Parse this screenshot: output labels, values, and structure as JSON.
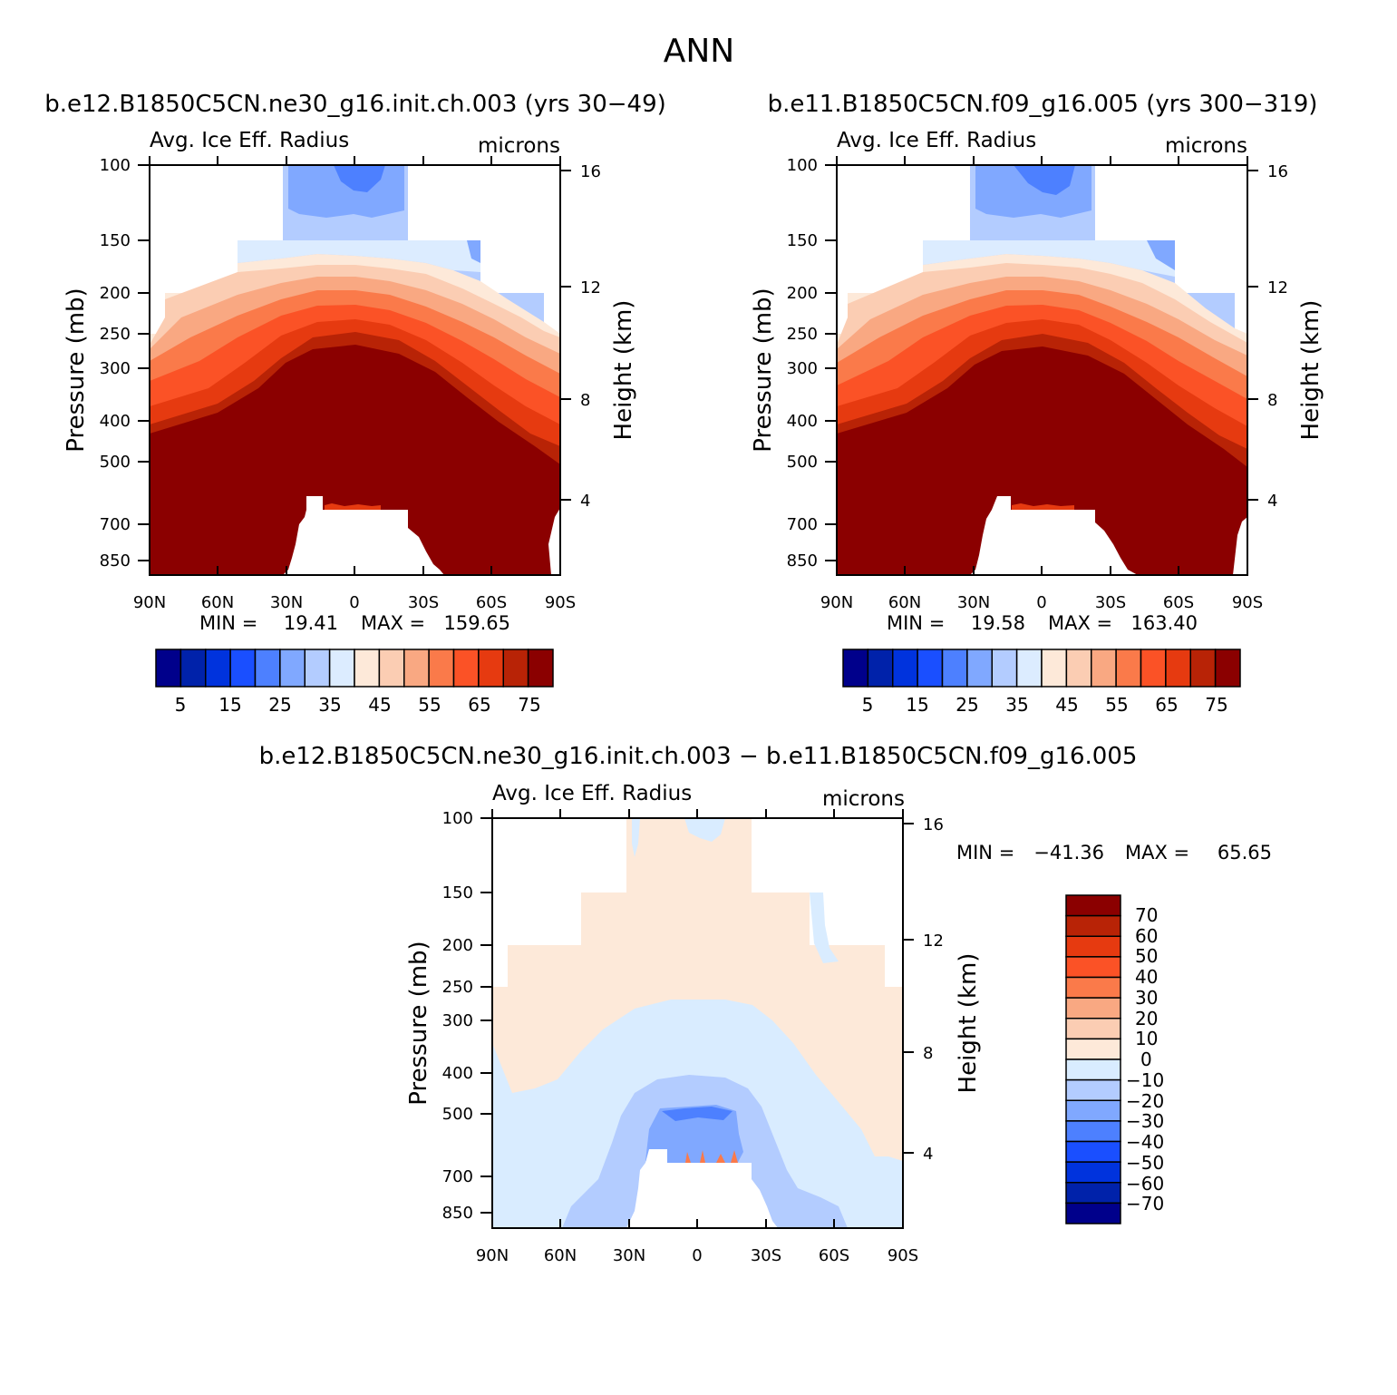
{
  "page": {
    "title": "ANN",
    "panel_left_title": "b.e12.B1850C5CN.ne30_g16.init.ch.003 (yrs 30-49)",
    "panel_right_title": "b.e11.B1850C5CN.f09_g16.005 (yrs 300-319)",
    "panel_diff_title": "b.e12.B1850C5CN.ne30_g16.init.ch.003 - b.e11.B1850C5CN.f09_g16.005"
  },
  "colors": {
    "abs_scale": [
      "#00008b",
      "#0022aa",
      "#0033dd",
      "#1a4fff",
      "#4d80ff",
      "#80a8ff",
      "#b3ccff",
      "#dcecff",
      "#fde9d9",
      "#fbcdb3",
      "#f9a882",
      "#fa7a4a",
      "#fb5226",
      "#e63a10",
      "#b82306",
      "#8b0000"
    ],
    "diff_scale": [
      "#00008b",
      "#0022aa",
      "#0033dd",
      "#1a4fff",
      "#4d80ff",
      "#80a8ff",
      "#b3ccff",
      "#d9ecff",
      "#fde9d9",
      "#fbcdb3",
      "#f9a882",
      "#fa7a4a",
      "#fb5226",
      "#e63a10",
      "#b82306",
      "#8b0000"
    ]
  },
  "chart_data": [
    {
      "id": "left",
      "type": "contour",
      "variable": "Avg. Ice Eff. Radius",
      "units": "microns",
      "xlabel": "",
      "ylabel": "Pressure (mb)",
      "y2label": "Height (km)",
      "x_ticks": [
        "90N",
        "60N",
        "30N",
        "0",
        "30S",
        "60S",
        "90S"
      ],
      "y_ticks": [
        "100",
        "150",
        "200",
        "250",
        "300",
        "400",
        "500",
        "700",
        "850"
      ],
      "y2_ticks": [
        "16",
        "12",
        "8",
        "4"
      ],
      "min_label": "MIN =",
      "min": "19.41",
      "max_label": "MAX =",
      "max": "159.65",
      "colorbar_labels": [
        "5",
        "15",
        "25",
        "35",
        "45",
        "55",
        "65",
        "75"
      ]
    },
    {
      "id": "right",
      "type": "contour",
      "variable": "Avg. Ice Eff. Radius",
      "units": "microns",
      "xlabel": "",
      "ylabel": "Pressure (mb)",
      "y2label": "Height (km)",
      "x_ticks": [
        "90N",
        "60N",
        "30N",
        "0",
        "30S",
        "60S",
        "90S"
      ],
      "y_ticks": [
        "100",
        "150",
        "200",
        "250",
        "300",
        "400",
        "500",
        "700",
        "850"
      ],
      "y2_ticks": [
        "16",
        "12",
        "8",
        "4"
      ],
      "min_label": "MIN =",
      "min": "19.58",
      "max_label": "MAX =",
      "max": "163.40",
      "colorbar_labels": [
        "5",
        "15",
        "25",
        "35",
        "45",
        "55",
        "65",
        "75"
      ]
    },
    {
      "id": "diff",
      "type": "contour",
      "variable": "Avg. Ice Eff. Radius",
      "units": "microns",
      "xlabel": "",
      "ylabel": "Pressure (mb)",
      "y2label": "Height (km)",
      "x_ticks": [
        "90N",
        "60N",
        "30N",
        "0",
        "30S",
        "60S",
        "90S"
      ],
      "y_ticks": [
        "100",
        "150",
        "200",
        "250",
        "300",
        "400",
        "500",
        "700",
        "850"
      ],
      "y2_ticks": [
        "16",
        "12",
        "8",
        "4"
      ],
      "min_label": "MIN =",
      "min": "-41.36",
      "max_label": "MAX =",
      "max": "65.65",
      "colorbar_labels": [
        "70",
        "60",
        "50",
        "40",
        "30",
        "20",
        "10",
        "0",
        "-10",
        "-20",
        "-30",
        "-40",
        "-50",
        "-60",
        "-70"
      ]
    }
  ]
}
